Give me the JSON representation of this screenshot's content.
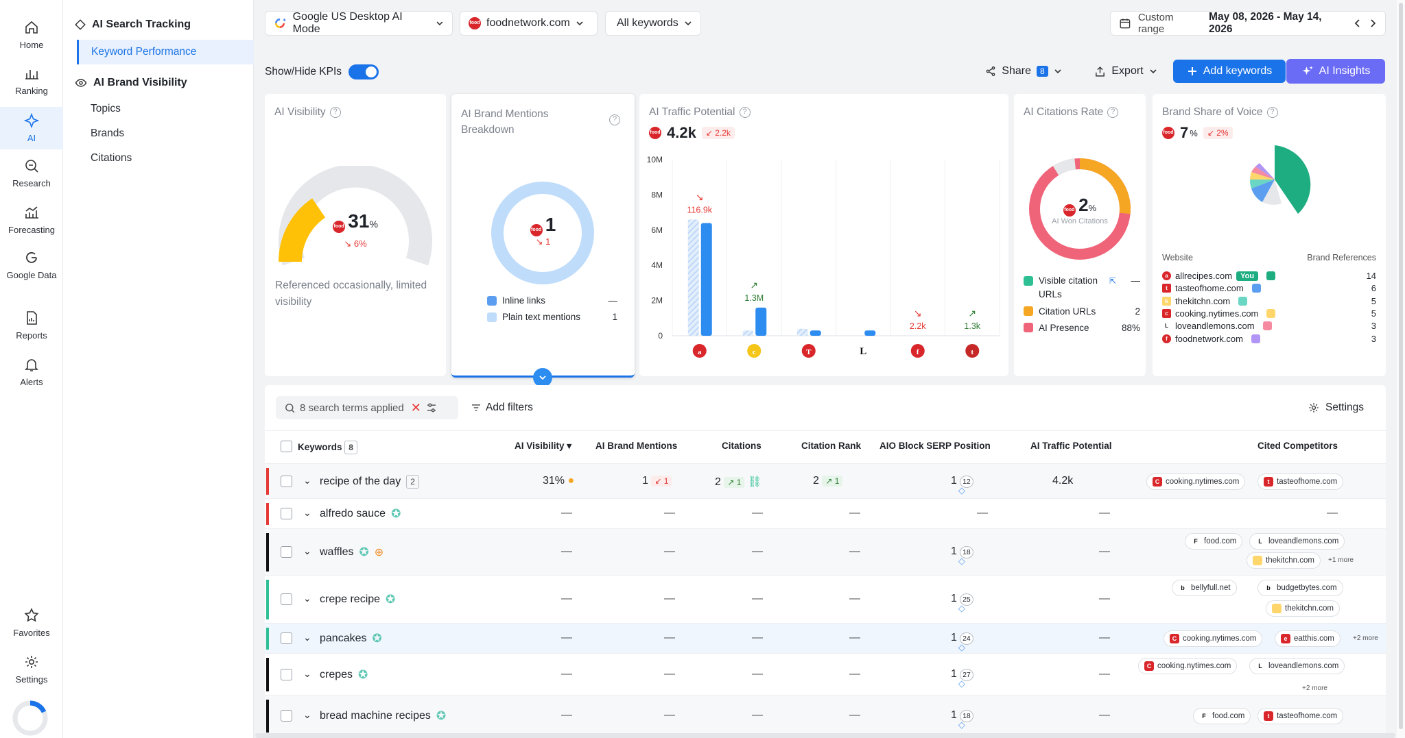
{
  "nav": {
    "items": [
      {
        "label": "Home",
        "icon": "home-icon"
      },
      {
        "label": "Ranking",
        "icon": "bar-chart-icon"
      },
      {
        "label": "AI",
        "icon": "sparkle-icon"
      },
      {
        "label": "Research",
        "icon": "magnifier-icon"
      },
      {
        "label": "Forecasting",
        "icon": "forecast-icon"
      },
      {
        "label": "Google Data",
        "icon": "google-icon"
      },
      {
        "label": "Reports",
        "icon": "report-icon"
      },
      {
        "label": "Alerts",
        "icon": "bell-icon"
      }
    ],
    "bottom": [
      {
        "label": "Favorites",
        "icon": "star-icon"
      },
      {
        "label": "Settings",
        "icon": "gear-icon"
      }
    ]
  },
  "sidebar": {
    "section1": "AI Search Tracking",
    "section1_item": "Keyword Performance",
    "section2": "AI Brand Visibility",
    "section2_items": [
      "Topics",
      "Brands",
      "Citations"
    ]
  },
  "topbar": {
    "engine": "Google US Desktop AI Mode",
    "domain": "foodnetwork.com",
    "keywords": "All keywords",
    "range_label": "Custom range",
    "range_value": "May 08, 2026 - May 14, 2026"
  },
  "toolbar": {
    "kpi_toggle": "Show/Hide KPIs",
    "share": "Share",
    "share_count": "8",
    "export": "Export",
    "add_keywords": "Add keywords",
    "ai_insights": "AI Insights"
  },
  "kpi": {
    "visibility": {
      "title": "AI Visibility",
      "value": "31",
      "unit": "%",
      "delta": "6%",
      "note": "Referenced occasionally, limited visibility",
      "fraction": 0.31
    },
    "mentions": {
      "title": "AI Brand Mentions Breakdown",
      "value": "1",
      "delta": "1",
      "legend": [
        {
          "label": "Inline links",
          "value": "—",
          "color": "#5b9ef0"
        },
        {
          "label": "Plain text mentions",
          "value": "1",
          "color": "#bfdcfb"
        }
      ]
    },
    "traffic": {
      "title": "AI Traffic Potential",
      "value": "4.2k",
      "delta": "2.2k"
    },
    "citations": {
      "title": "AI Citations Rate",
      "value": "2",
      "unit": "%",
      "sub": "AI Won Citations",
      "legend": [
        {
          "label": "Visible citation URLs",
          "value": "—",
          "color": "#2fbf94"
        },
        {
          "label": "Citation URLs",
          "value": "2",
          "color": "#f5a623"
        },
        {
          "label": "AI Presence",
          "value": "88%",
          "color": "#f0647a"
        }
      ]
    },
    "sov": {
      "title": "Brand Share of Voice",
      "value": "7",
      "unit": "%",
      "delta": "2%",
      "col_website": "Website",
      "col_refs": "Brand References",
      "you": "You",
      "sites": [
        {
          "name": "allrecipes.com",
          "refs": "14",
          "color": "#1dad80",
          "logo": "a"
        },
        {
          "name": "tasteofhome.com",
          "refs": "6",
          "color": "#5b9ef0",
          "logo": "t"
        },
        {
          "name": "thekitchn.com",
          "refs": "5",
          "color": "#6ad6c4",
          "logo": "k"
        },
        {
          "name": "cooking.nytimes.com",
          "refs": "5",
          "color": "#ffd66b",
          "logo": "c"
        },
        {
          "name": "loveandlemons.com",
          "refs": "3",
          "color": "#f58aa0",
          "logo": "L"
        },
        {
          "name": "foodnetwork.com",
          "refs": "3",
          "color": "#b195f5",
          "logo": "f"
        }
      ]
    }
  },
  "chart_data": {
    "type": "bar",
    "title": "AI Traffic Potential",
    "categories": [
      "allrecipes.com",
      "cooking.nytimes.com",
      "nytimes.com",
      "loveandlemons.com",
      "foodnetwork.com",
      "tasteofhome.com"
    ],
    "series": [
      {
        "values": [
          6.6,
          0.3,
          0.4,
          0.0,
          0.0,
          0.0
        ],
        "color": "#cfe3fb"
      },
      {
        "values": [
          6.4,
          1.6,
          0.3,
          0.3,
          0.0,
          0.0
        ],
        "color": "#2d8cf0"
      }
    ],
    "labels": [
      "116.9k",
      "1.3M",
      "",
      "",
      "2.2k",
      "1.3k"
    ],
    "label_trend": [
      "down",
      "up",
      "",
      "",
      "down",
      "up"
    ],
    "yticks": [
      "10M",
      "8M",
      "6M",
      "4M",
      "2M",
      "0"
    ],
    "ylim": [
      0,
      10
    ]
  },
  "table": {
    "search_chip": "8 search terms applied",
    "add_filters": "Add filters",
    "settings": "Settings",
    "headers": {
      "keywords": "Keywords",
      "count": "8",
      "visibility": "AI Visibility",
      "mentions": "AI Brand Mentions",
      "citations": "Citations",
      "rank": "Citation Rank",
      "serp": "AIO Block SERP Position",
      "traffic": "AI Traffic Potential",
      "competitors": "Cited Competitors"
    },
    "dash": "—",
    "more2": "+2 more",
    "more1": "+1 more",
    "rows": [
      {
        "keyword": "recipe of the day",
        "count": "2",
        "visibility": "31%",
        "mentions": "1",
        "mentions_d": "1",
        "citations": "2",
        "citations_d": "1",
        "rank": "2",
        "rank_d": "1",
        "serp": "1",
        "serp_sup": "12",
        "traffic": "4.2k",
        "color": "#e53935"
      },
      {
        "keyword": "alfredo sauce",
        "color": "#e53935"
      },
      {
        "keyword": "waffles",
        "serp": "1",
        "serp_sup": "18",
        "color": "#111"
      },
      {
        "keyword": "crepe recipe",
        "serp": "1",
        "serp_sup": "25",
        "color": "#2fbf94"
      },
      {
        "keyword": "pancakes",
        "serp": "1",
        "serp_sup": "24",
        "color": "#2fbf94"
      },
      {
        "keyword": "crepes",
        "serp": "1",
        "serp_sup": "27",
        "color": "#111"
      },
      {
        "keyword": "bread machine recipes",
        "serp": "1",
        "serp_sup": "18",
        "color": "#111"
      }
    ],
    "chips": {
      "r0": [
        "cooking.nytimes.com",
        "tasteofhome.com"
      ],
      "r2": [
        "food.com",
        "loveandlemons.com",
        "thekitchn.com"
      ],
      "r3": [
        "bellyfull.net",
        "budgetbytes.com",
        "thekitchn.com"
      ],
      "r4": [
        "cooking.nytimes.com",
        "eatthis.com"
      ],
      "r5": [
        "cooking.nytimes.com",
        "loveandlemons.com"
      ],
      "r6": [
        "food.com",
        "tasteofhome.com"
      ]
    }
  }
}
